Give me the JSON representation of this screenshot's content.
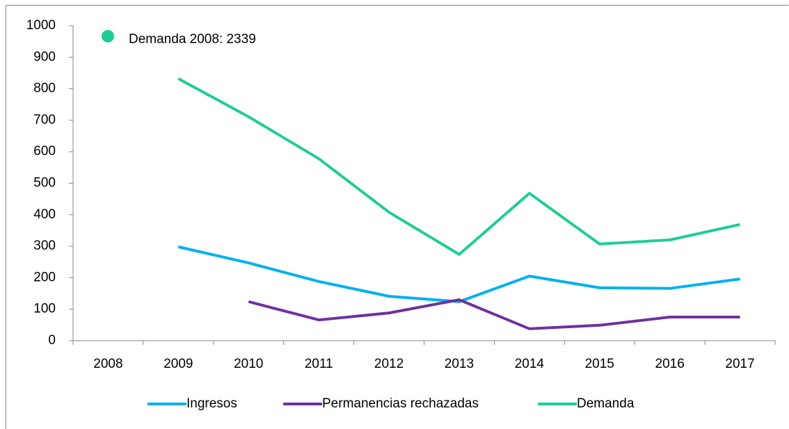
{
  "chart_data": {
    "type": "line",
    "annotation": "Demanda 2008: 2339",
    "categories": [
      "2008",
      "2009",
      "2010",
      "2011",
      "2012",
      "2013",
      "2014",
      "2015",
      "2016",
      "2017"
    ],
    "series": [
      {
        "name": "Ingresos",
        "color": "#00b0f0",
        "values": [
          null,
          298,
          247,
          188,
          141,
          124,
          205,
          168,
          166,
          196
        ]
      },
      {
        "name": "Permanencias rechazadas",
        "color": "#7030a0",
        "values": [
          null,
          null,
          124,
          66,
          88,
          130,
          38,
          49,
          75,
          75
        ]
      },
      {
        "name": "Demanda",
        "color": "#1fcc96",
        "values": [
          null,
          832,
          711,
          578,
          408,
          274,
          468,
          307,
          320,
          369
        ]
      }
    ],
    "ylim": [
      0,
      1000
    ],
    "yticks": [
      0,
      100,
      200,
      300,
      400,
      500,
      600,
      700,
      800,
      900,
      1000
    ],
    "grid": false,
    "legend": "bottom"
  }
}
